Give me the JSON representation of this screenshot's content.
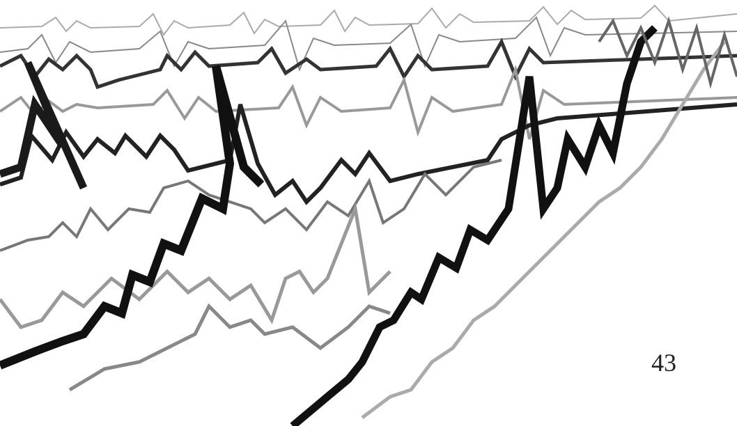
{
  "page": {
    "number": "43"
  }
}
